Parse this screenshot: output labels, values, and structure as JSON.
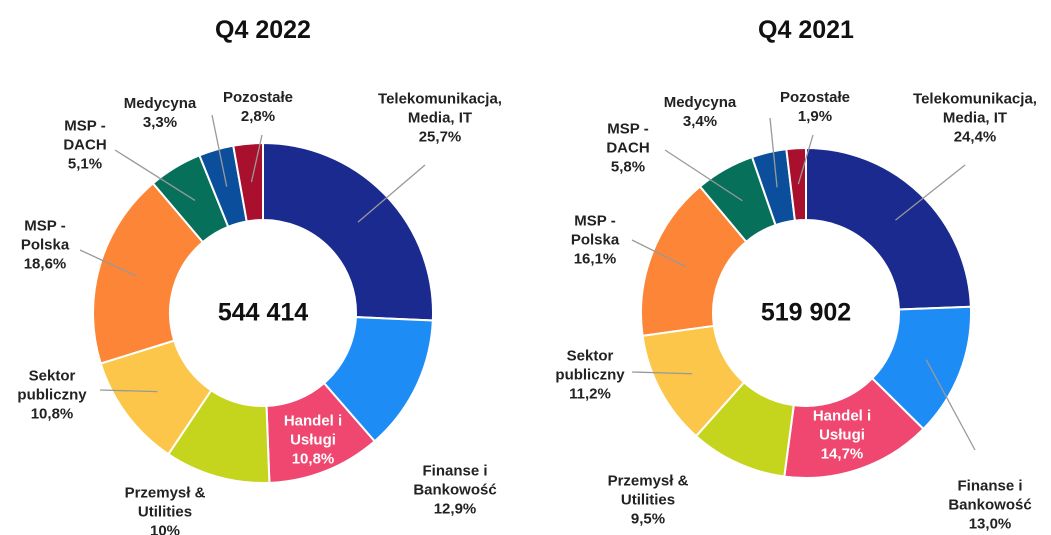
{
  "chart_data": [
    {
      "type": "donut",
      "title": "Q4 2022",
      "total": 544414,
      "total_label": "544 414",
      "categories": [
        "Telekomunikacja, Media, IT",
        "Finanse i Bankowość",
        "Handel i Usługi",
        "Przemysł & Utilities",
        "Sektor publiczny",
        "MSP - Polska",
        "MSP - DACH",
        "Medycyna",
        "Pozostałe"
      ],
      "values": [
        25.7,
        12.9,
        10.8,
        10,
        10.8,
        18.6,
        5.1,
        3.3,
        2.8
      ],
      "value_labels": [
        "25,7%",
        "12,9%",
        "10,8%",
        "10%",
        "10,8%",
        "18,6%",
        "5,1%",
        "3,3%",
        "2,8%"
      ],
      "colors": [
        "#1a2a8f",
        "#1e8cf5",
        "#ef476f",
        "#c5d51d",
        "#fcc64a",
        "#fd8537",
        "#07705b",
        "#0b4f9c",
        "#a8102e"
      ]
    },
    {
      "type": "donut",
      "title": "Q4 2021",
      "total": 519902,
      "total_label": "519 902",
      "categories": [
        "Telekomunikacja, Media, IT",
        "Finanse i Bankowość",
        "Handel i Usługi",
        "Przemysł & Utilities",
        "Sektor publiczny",
        "MSP - Polska",
        "MSP - DACH",
        "Medycyna",
        "Pozostałe"
      ],
      "values": [
        24.4,
        13.0,
        14.7,
        9.5,
        11.2,
        16.1,
        5.8,
        3.4,
        1.9
      ],
      "value_labels": [
        "24,4%",
        "13,0%",
        "14,7%",
        "9,5%",
        "11,2%",
        "16,1%",
        "5,8%",
        "3,4%",
        "1,9%"
      ],
      "colors": [
        "#1a2a8f",
        "#1e8cf5",
        "#ef476f",
        "#c5d51d",
        "#fcc64a",
        "#fd8537",
        "#07705b",
        "#0b4f9c",
        "#a8102e"
      ]
    }
  ]
}
